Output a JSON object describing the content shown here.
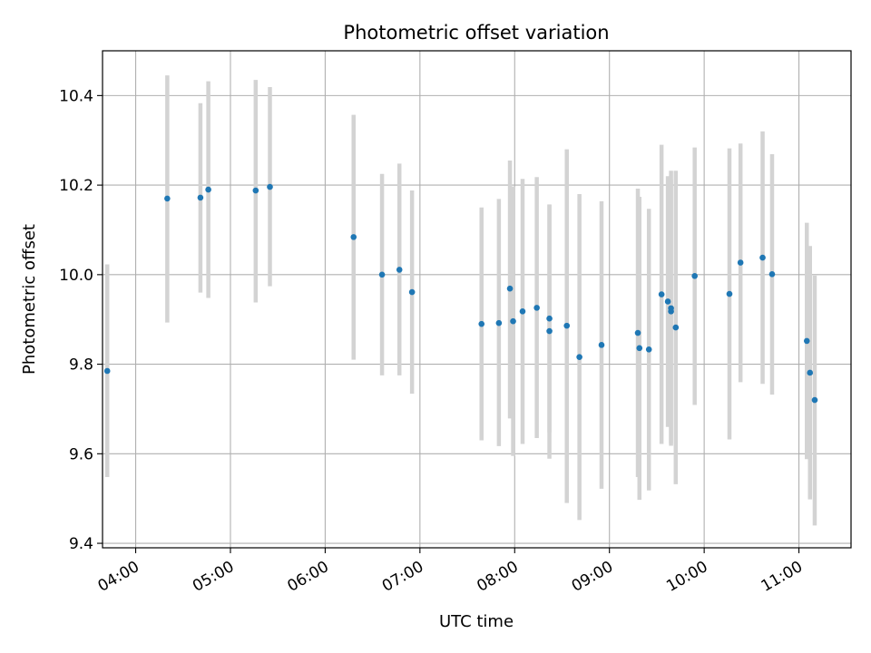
{
  "chart_data": {
    "type": "scatter",
    "title": "Photometric offset variation",
    "xlabel": "UTC time",
    "ylabel": "Photometric offset",
    "x_tick_labels": [
      "04:00",
      "05:00",
      "06:00",
      "07:00",
      "08:00",
      "09:00",
      "10:00",
      "11:00"
    ],
    "y_tick_labels": [
      "9.4",
      "9.6",
      "9.8",
      "10.0",
      "10.2",
      "10.4"
    ],
    "xlim": [
      "03:39",
      "11:33"
    ],
    "ylim": [
      9.39,
      10.5
    ],
    "grid": true,
    "colors": {
      "point": "#1f77b4",
      "errorbar": "#d3d3d3",
      "grid": "#b0b0b0"
    },
    "series": [
      {
        "points": [
          {
            "x": "03:42",
            "y": 9.785,
            "ylo": 9.548,
            "yhi": 10.023
          },
          {
            "x": "04:20",
            "y": 10.17,
            "ylo": 9.893,
            "yhi": 10.445
          },
          {
            "x": "04:41",
            "y": 10.172,
            "ylo": 9.96,
            "yhi": 10.383
          },
          {
            "x": "04:46",
            "y": 10.19,
            "ylo": 9.948,
            "yhi": 10.432
          },
          {
            "x": "05:16",
            "y": 10.188,
            "ylo": 9.938,
            "yhi": 10.435
          },
          {
            "x": "05:25",
            "y": 10.196,
            "ylo": 9.974,
            "yhi": 10.419
          },
          {
            "x": "06:18",
            "y": 10.084,
            "ylo": 9.81,
            "yhi": 10.357
          },
          {
            "x": "06:36",
            "y": 10.0,
            "ylo": 9.775,
            "yhi": 10.225
          },
          {
            "x": "06:47",
            "y": 10.011,
            "ylo": 9.775,
            "yhi": 10.248
          },
          {
            "x": "06:55",
            "y": 9.961,
            "ylo": 9.734,
            "yhi": 10.188
          },
          {
            "x": "07:39",
            "y": 9.89,
            "ylo": 9.63,
            "yhi": 10.15
          },
          {
            "x": "07:50",
            "y": 9.892,
            "ylo": 9.617,
            "yhi": 10.169
          },
          {
            "x": "07:57",
            "y": 9.969,
            "ylo": 9.679,
            "yhi": 10.255
          },
          {
            "x": "07:59",
            "y": 9.896,
            "ylo": 9.595,
            "yhi": 10.197
          },
          {
            "x": "08:05",
            "y": 9.918,
            "ylo": 9.622,
            "yhi": 10.214
          },
          {
            "x": "08:14",
            "y": 9.926,
            "ylo": 9.635,
            "yhi": 10.218
          },
          {
            "x": "08:22",
            "y": 9.902,
            "ylo": 9.648,
            "yhi": 10.156
          },
          {
            "x": "08:22",
            "y": 9.874,
            "ylo": 9.589,
            "yhi": 10.157
          },
          {
            "x": "08:33",
            "y": 9.886,
            "ylo": 9.49,
            "yhi": 10.28
          },
          {
            "x": "08:41",
            "y": 9.816,
            "ylo": 9.452,
            "yhi": 10.18
          },
          {
            "x": "08:55",
            "y": 9.843,
            "ylo": 9.522,
            "yhi": 10.164
          },
          {
            "x": "09:18",
            "y": 9.87,
            "ylo": 9.548,
            "yhi": 10.192
          },
          {
            "x": "09:19",
            "y": 9.836,
            "ylo": 9.497,
            "yhi": 10.174
          },
          {
            "x": "09:25",
            "y": 9.833,
            "ylo": 9.518,
            "yhi": 10.147
          },
          {
            "x": "09:33",
            "y": 9.956,
            "ylo": 9.622,
            "yhi": 10.29
          },
          {
            "x": "09:37",
            "y": 9.94,
            "ylo": 9.66,
            "yhi": 10.22
          },
          {
            "x": "09:39",
            "y": 9.925,
            "ylo": 9.618,
            "yhi": 10.232
          },
          {
            "x": "09:39",
            "y": 9.918,
            "ylo": 9.623,
            "yhi": 10.213
          },
          {
            "x": "09:42",
            "y": 9.882,
            "ylo": 9.532,
            "yhi": 10.232
          },
          {
            "x": "09:54",
            "y": 9.997,
            "ylo": 9.709,
            "yhi": 10.284
          },
          {
            "x": "10:16",
            "y": 9.957,
            "ylo": 9.632,
            "yhi": 10.282
          },
          {
            "x": "10:23",
            "y": 10.027,
            "ylo": 9.76,
            "yhi": 10.293
          },
          {
            "x": "10:37",
            "y": 10.038,
            "ylo": 9.756,
            "yhi": 10.32
          },
          {
            "x": "10:43",
            "y": 10.001,
            "ylo": 9.732,
            "yhi": 10.269
          },
          {
            "x": "11:05",
            "y": 9.852,
            "ylo": 9.588,
            "yhi": 10.116
          },
          {
            "x": "11:07",
            "y": 9.781,
            "ylo": 9.498,
            "yhi": 10.064
          },
          {
            "x": "11:10",
            "y": 9.72,
            "ylo": 9.44,
            "yhi": 9.998
          }
        ]
      }
    ]
  }
}
